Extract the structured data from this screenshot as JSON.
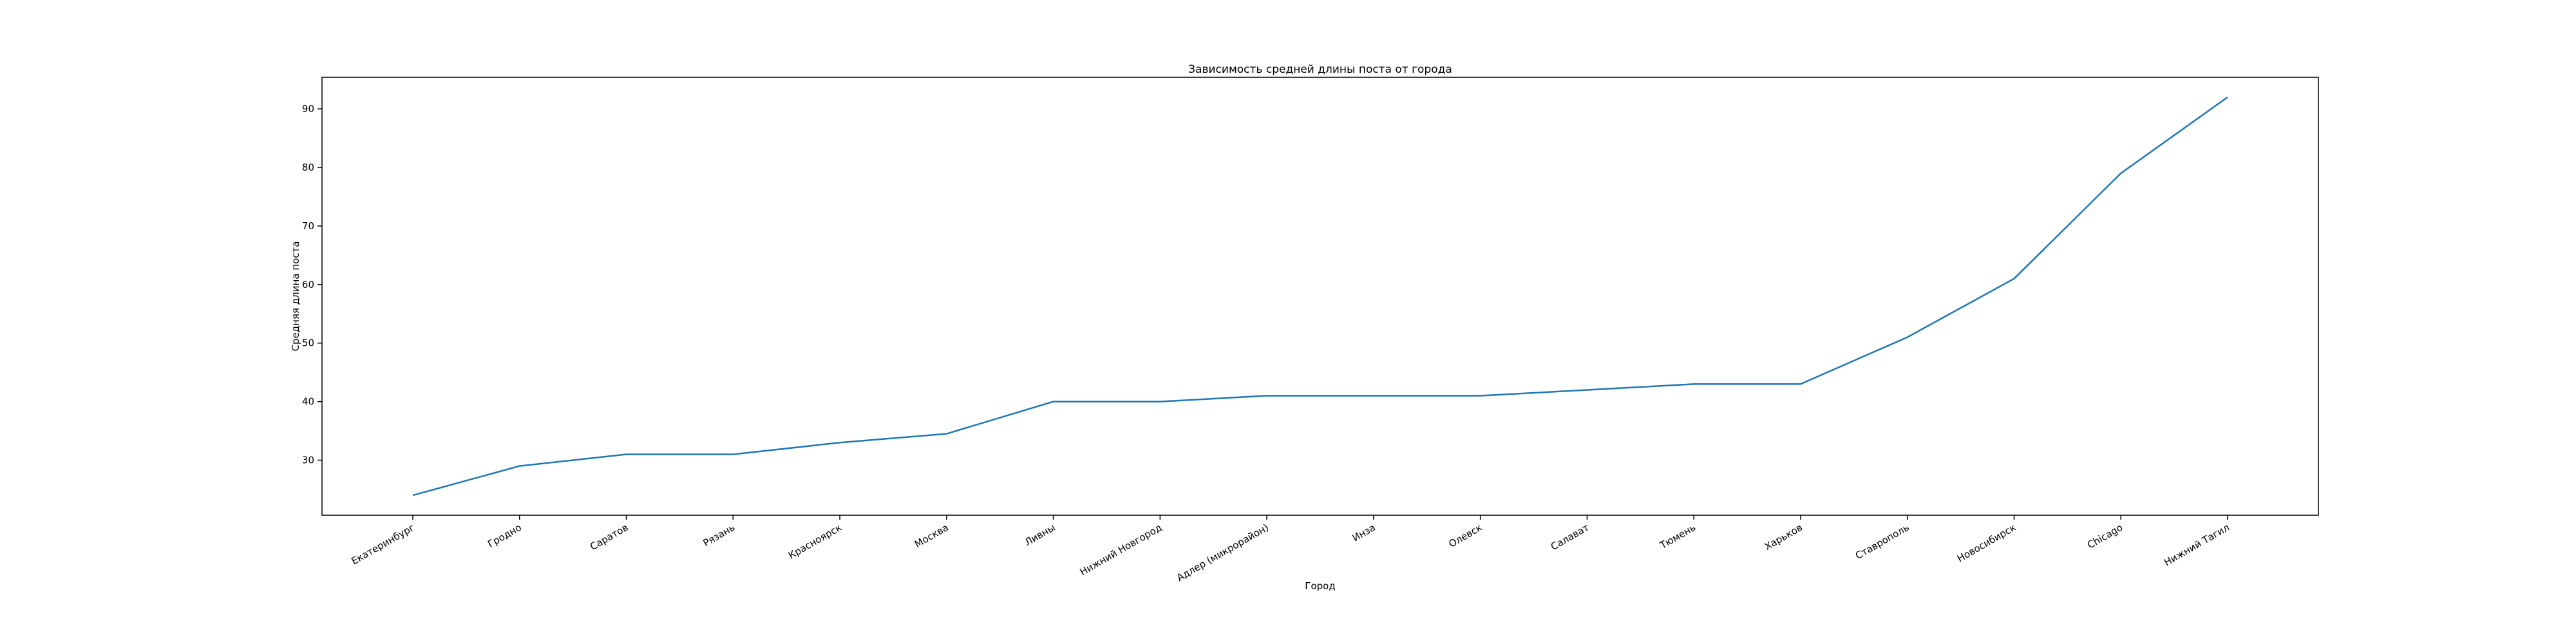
{
  "chart_data": {
    "type": "line",
    "title": "Зависимость средней длины поста от города",
    "xlabel": "Город",
    "ylabel": "Средняя длина поста",
    "categories": [
      "Екатеринбург",
      "Гродно",
      "Саратов",
      "Рязань",
      "Красноярск",
      "Москва",
      "Ливны",
      "Нижний Новгород",
      "Адлер (микрорайон)",
      "Инза",
      "Олевск",
      "Салават",
      "Тюмень",
      "Харьков",
      "Ставрополь",
      "Новосибирск",
      "Chicago",
      "Нижний Тагил"
    ],
    "series": [
      {
        "values": [
          24,
          29,
          31,
          31,
          33,
          34.5,
          40,
          40,
          41,
          41,
          41,
          42,
          43,
          43,
          51,
          61,
          79,
          92
        ]
      }
    ],
    "ylim": [
      20.6,
      95.4
    ],
    "yticks": [
      30,
      40,
      50,
      60,
      70,
      80,
      90
    ],
    "grid": false,
    "colors": {
      "line": "#1f77b4",
      "axes": "#000000",
      "background": "#ffffff"
    }
  }
}
